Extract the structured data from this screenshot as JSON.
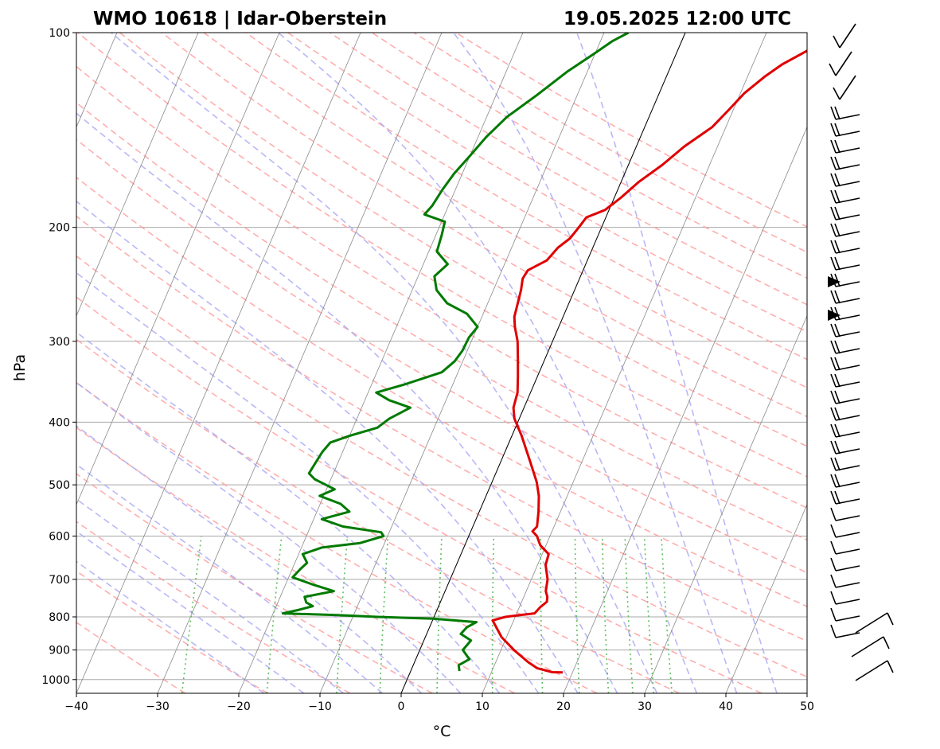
{
  "header": {
    "station": "WMO 10618 | Idar-Oberstein",
    "datetime": "19.05.2025 12:00 UTC"
  },
  "chart_data": {
    "type": "line",
    "diagram": "skew-T log-p",
    "xlabel": "°C",
    "ylabel": "hPa",
    "xlim": [
      -40,
      50
    ],
    "ylim": [
      1050,
      100
    ],
    "y_scale": "log",
    "xticks": [
      -40,
      -30,
      -20,
      -10,
      0,
      10,
      20,
      30,
      40,
      50
    ],
    "yticks": [
      1000,
      900,
      800,
      700,
      600,
      500,
      400,
      300,
      200,
      100
    ],
    "grid": true,
    "colors": {
      "temperature": "#e00000",
      "dewpoint": "#007a00",
      "dry_adiabats": "#ff9a9a",
      "moist_adiabats": "#a6a6f5",
      "mixing_ratio": "#5fbf5f",
      "isotherms": "#8a8a8a",
      "isobars": "#a8a8a8"
    },
    "temperature": [
      [
        975,
        18.8
      ],
      [
        974,
        17.5
      ],
      [
        960,
        15.4
      ],
      [
        940,
        14.0
      ],
      [
        900,
        11.6
      ],
      [
        860,
        9.4
      ],
      [
        810,
        7.4
      ],
      [
        800,
        8.8
      ],
      [
        795,
        10.5
      ],
      [
        790,
        12.2
      ],
      [
        772,
        12.6
      ],
      [
        758,
        13.1
      ],
      [
        745,
        12.9
      ],
      [
        730,
        12.4
      ],
      [
        700,
        12.0
      ],
      [
        665,
        11.0
      ],
      [
        640,
        10.8
      ],
      [
        620,
        9.3
      ],
      [
        600,
        8.4
      ],
      [
        590,
        7.6
      ],
      [
        580,
        7.9
      ],
      [
        550,
        7.3
      ],
      [
        520,
        6.5
      ],
      [
        495,
        5.5
      ],
      [
        460,
        3.6
      ],
      [
        420,
        1.2
      ],
      [
        395,
        -0.6
      ],
      [
        380,
        -1.3
      ],
      [
        360,
        -1.6
      ],
      [
        340,
        -2.4
      ],
      [
        320,
        -3.3
      ],
      [
        300,
        -4.3
      ],
      [
        285,
        -5.4
      ],
      [
        275,
        -6.0
      ],
      [
        262,
        -6.3
      ],
      [
        250,
        -6.6
      ],
      [
        240,
        -7.0
      ],
      [
        233,
        -6.8
      ],
      [
        225,
        -5.0
      ],
      [
        215,
        -4.3
      ],
      [
        208,
        -3.3
      ],
      [
        200,
        -2.8
      ],
      [
        193,
        -2.4
      ],
      [
        188,
        -0.5
      ],
      [
        180,
        0.8
      ],
      [
        170,
        2.2
      ],
      [
        160,
        4.2
      ],
      [
        150,
        5.9
      ],
      [
        140,
        8.3
      ],
      [
        132,
        9.4
      ],
      [
        124,
        10.5
      ],
      [
        117,
        12.1
      ],
      [
        112,
        13.6
      ],
      [
        107,
        15.8
      ],
      [
        103,
        17.6
      ],
      [
        100,
        18.6
      ]
    ],
    "dewpoint": [
      [
        970,
        6.0
      ],
      [
        950,
        5.6
      ],
      [
        930,
        6.6
      ],
      [
        900,
        5.3
      ],
      [
        870,
        5.8
      ],
      [
        850,
        4.2
      ],
      [
        830,
        4.6
      ],
      [
        815,
        5.5
      ],
      [
        805,
        0.0
      ],
      [
        800,
        -7.0
      ],
      [
        795,
        -12.0
      ],
      [
        790,
        -18.8
      ],
      [
        780,
        -17.0
      ],
      [
        770,
        -15.5
      ],
      [
        760,
        -16.5
      ],
      [
        745,
        -17.0
      ],
      [
        730,
        -13.7
      ],
      [
        712,
        -16.8
      ],
      [
        695,
        -19.5
      ],
      [
        675,
        -19.0
      ],
      [
        660,
        -18.5
      ],
      [
        640,
        -19.5
      ],
      [
        625,
        -17.5
      ],
      [
        615,
        -13.0
      ],
      [
        600,
        -10.5
      ],
      [
        592,
        -11.0
      ],
      [
        580,
        -16.0
      ],
      [
        565,
        -19.0
      ],
      [
        550,
        -16.0
      ],
      [
        535,
        -17.5
      ],
      [
        520,
        -20.5
      ],
      [
        508,
        -19.0
      ],
      [
        490,
        -22.0
      ],
      [
        480,
        -23.0
      ],
      [
        465,
        -22.8
      ],
      [
        445,
        -22.5
      ],
      [
        430,
        -22.0
      ],
      [
        420,
        -20.0
      ],
      [
        408,
        -17.0
      ],
      [
        395,
        -16.0
      ],
      [
        380,
        -14.0
      ],
      [
        370,
        -17.0
      ],
      [
        360,
        -19.0
      ],
      [
        350,
        -16.0
      ],
      [
        335,
        -12.0
      ],
      [
        322,
        -11.0
      ],
      [
        310,
        -10.6
      ],
      [
        296,
        -10.5
      ],
      [
        285,
        -10.0
      ],
      [
        272,
        -12.0
      ],
      [
        262,
        -15.0
      ],
      [
        250,
        -17.0
      ],
      [
        238,
        -18.0
      ],
      [
        228,
        -17.0
      ],
      [
        218,
        -19.0
      ],
      [
        205,
        -19.3
      ],
      [
        196,
        -19.6
      ],
      [
        191,
        -22.5
      ],
      [
        185,
        -22.0
      ],
      [
        175,
        -21.6
      ],
      [
        165,
        -21.0
      ],
      [
        155,
        -20.0
      ],
      [
        145,
        -19.0
      ],
      [
        135,
        -17.5
      ],
      [
        125,
        -15.0
      ],
      [
        115,
        -12.5
      ],
      [
        108,
        -10.2
      ],
      [
        103,
        -8.5
      ],
      [
        100,
        -7.0
      ]
    ]
  }
}
